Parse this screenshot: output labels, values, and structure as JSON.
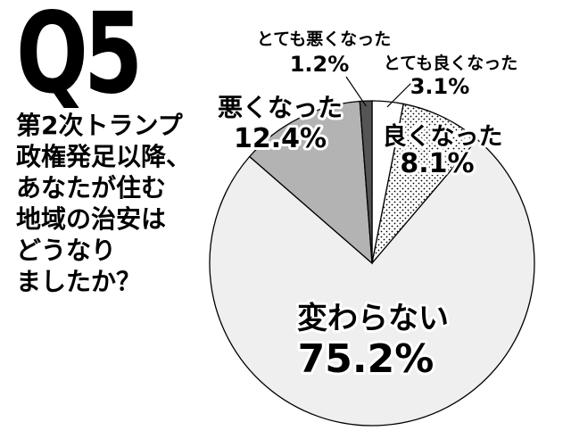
{
  "header": {
    "question_number": "Q5",
    "question_text": "第2次トランプ\n政権発足以降、\nあなたが住む\n地域の治安は\nどうなり\nましたか？"
  },
  "chart_data": {
    "type": "pie",
    "title": "",
    "start": "top (12 o'clock)",
    "direction": "clockwise",
    "slices": [
      {
        "label": "とても良くなった",
        "value": 3.1,
        "display_value": "3.1%",
        "fill": "#ffffff",
        "pattern": "none"
      },
      {
        "label": "良くなった",
        "value": 8.1,
        "display_value": "8.1%",
        "fill": "#ffffff",
        "pattern": "dots"
      },
      {
        "label": "変わらない",
        "value": 75.2,
        "display_value": "75.2%",
        "fill": "#efefef",
        "pattern": "none"
      },
      {
        "label": "悪くなった",
        "value": 12.4,
        "display_value": "12.4%",
        "fill": "#b3b3b3",
        "pattern": "none"
      },
      {
        "label": "とても悪くなった",
        "value": 1.2,
        "display_value": "1.2%",
        "fill": "#555555",
        "pattern": "none"
      }
    ]
  }
}
